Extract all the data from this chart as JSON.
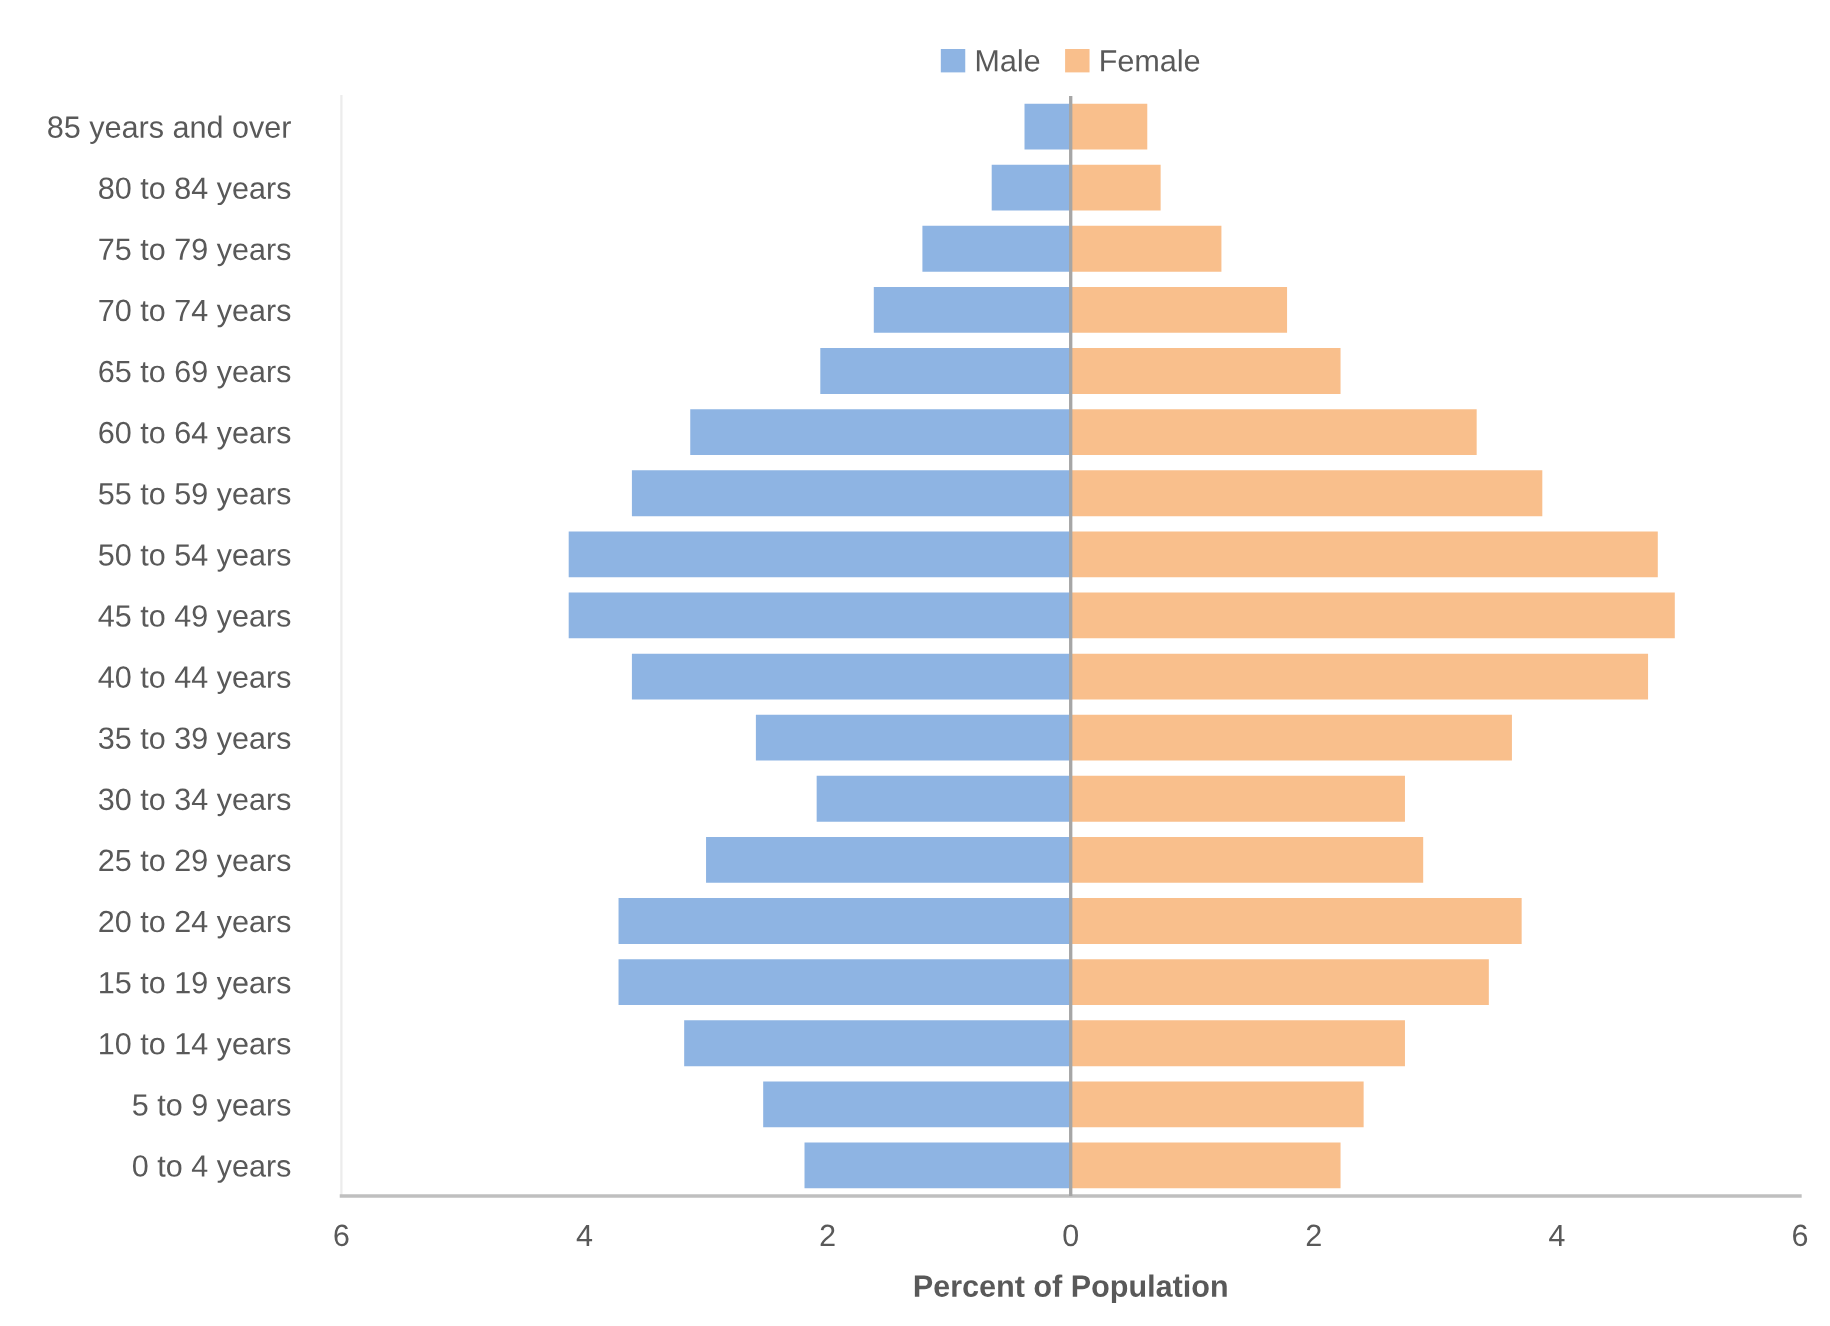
{
  "chart_data": {
    "type": "bar",
    "orientation": "horizontal",
    "stacked": true,
    "categories": [
      "85 years and over",
      "80 to 84 years",
      "75 to 79 years",
      "70 to 74 years",
      "65 to 69 years",
      "60 to 64 years",
      "55 to 59 years",
      "50 to 54 years",
      "45 to 49 years",
      "40 to 44 years",
      "35 to 39 years",
      "30 to 34 years",
      "25 to 29 years",
      "20 to 24 years",
      "15 to 19 years",
      "10 to 14 years",
      "5 to 9 years",
      "0 to 4 years"
    ],
    "series": [
      {
        "name": "Male",
        "color": "#8eb4e3",
        "values": [
          -0.38,
          -0.65,
          -1.22,
          -1.62,
          -2.06,
          -3.13,
          -3.61,
          -4.13,
          -4.13,
          -3.61,
          -2.59,
          -2.09,
          -3.0,
          -3.72,
          -3.72,
          -3.18,
          -2.53,
          -2.19
        ]
      },
      {
        "name": "Female",
        "color": "#f9bf8c",
        "values": [
          0.63,
          0.74,
          1.24,
          1.78,
          2.22,
          3.34,
          3.88,
          4.83,
          4.97,
          4.75,
          3.63,
          2.75,
          2.9,
          3.71,
          3.44,
          2.75,
          2.41,
          2.22
        ]
      }
    ],
    "xlim": [
      -6,
      6
    ],
    "xticks": [
      {
        "value": -6,
        "label": "6"
      },
      {
        "value": -4,
        "label": "4"
      },
      {
        "value": -2,
        "label": "2"
      },
      0,
      2,
      4,
      6
    ],
    "xlabel": "Percent of Population",
    "ref_lines": [
      {
        "axis": "x",
        "value": 0,
        "color": "#a6a6a6"
      }
    ],
    "legend": "top",
    "grid": false
  }
}
